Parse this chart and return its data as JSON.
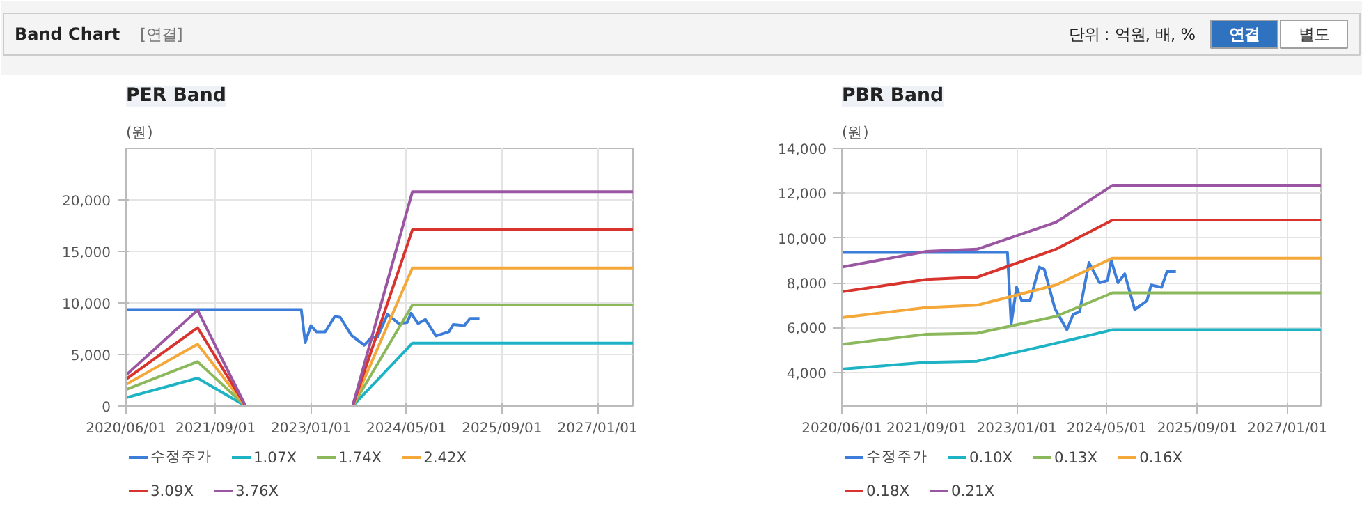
{
  "chart_data": [
    {
      "type": "other",
      "title": "Band Chart",
      "annotations": [
        "[연결]",
        "단위 : 억원, 배, %",
        "연결",
        "별도"
      ]
    },
    {
      "type": "line",
      "title": "PER Band",
      "ylabel": "(원)",
      "xlim": [
        "2020-06-01",
        "2027-07-01"
      ],
      "ylim": [
        0,
        25000
      ],
      "xticks": [
        {
          "value": "2020-06-01",
          "label": "2020/06/01"
        },
        {
          "value": "2021-09-01",
          "label": "2021/09/01"
        },
        {
          "value": "2023-01-01",
          "label": "2023/01/01"
        },
        {
          "value": "2024-05-01",
          "label": "2024/05/01"
        },
        {
          "value": "2025-09-01",
          "label": "2025/09/01"
        },
        {
          "value": "2027-01-01",
          "label": "2027/01/01"
        }
      ],
      "yticks": [
        {
          "value": 0,
          "label": "0"
        },
        {
          "value": 5000,
          "label": "5,000"
        },
        {
          "value": 10000,
          "label": "10,000"
        },
        {
          "value": 15000,
          "label": "15,000"
        },
        {
          "value": 20000,
          "label": "20,000"
        }
      ],
      "grid": true,
      "legend": "bottom",
      "marker": "none",
      "line_style": "solid",
      "series": [
        {
          "name": "수정주가",
          "color": "#3b7dd8",
          "x": [
            "2020-06-01",
            "2022-11-12",
            "2022-12-02",
            "2022-12-31",
            "2023-01-28",
            "2023-03-14",
            "2023-05-02",
            "2023-05-30",
            "2023-07-26",
            "2023-09-29",
            "2023-11-02",
            "2023-12-06",
            "2024-01-26",
            "2024-03-23",
            "2024-05-05",
            "2024-05-25",
            "2024-06-30",
            "2024-08-06",
            "2024-09-29",
            "2024-12-04",
            "2024-12-26",
            "2025-02-21",
            "2025-03-22",
            "2025-05-09"
          ],
          "values": [
            9350,
            9350,
            6150,
            7800,
            7200,
            7200,
            8700,
            8600,
            6850,
            5900,
            6600,
            6700,
            8900,
            8000,
            8100,
            9000,
            8000,
            8400,
            6800,
            7200,
            7900,
            7800,
            8500,
            8500
          ]
        },
        {
          "name": "1.07X",
          "color": "#1db3c4",
          "x": [
            "2020-06-01",
            "2021-06-01",
            "2022-02-01",
            "2022-11-01",
            "2023-08-01",
            "2024-06-01",
            "2027-07-01"
          ],
          "values": [
            800,
            2700,
            0,
            null,
            0,
            6100,
            6100
          ]
        },
        {
          "name": "1.74X",
          "color": "#8cb85c",
          "x": [
            "2020-06-01",
            "2021-06-01",
            "2022-02-01",
            "2022-11-01",
            "2023-08-01",
            "2024-06-01",
            "2027-07-01"
          ],
          "values": [
            1600,
            4300,
            0,
            null,
            0,
            9800,
            9800
          ]
        },
        {
          "name": "2.42X",
          "color": "#f5a83a",
          "x": [
            "2020-06-01",
            "2021-06-01",
            "2022-02-01",
            "2022-11-01",
            "2023-08-01",
            "2024-06-01",
            "2027-07-01"
          ],
          "values": [
            2100,
            6000,
            0,
            null,
            0,
            13400,
            13400
          ]
        },
        {
          "name": "3.09X",
          "color": "#d8332c",
          "x": [
            "2020-06-01",
            "2021-06-01",
            "2022-02-01",
            "2022-11-01",
            "2023-08-01",
            "2024-06-01",
            "2027-07-01"
          ],
          "values": [
            2600,
            7600,
            0,
            null,
            0,
            17100,
            17100
          ]
        },
        {
          "name": "3.76X",
          "color": "#9b56a3",
          "x": [
            "2020-06-01",
            "2021-06-01",
            "2022-02-01",
            "2022-11-01",
            "2023-08-01",
            "2024-06-01",
            "2027-07-01"
          ],
          "values": [
            3000,
            9300,
            0,
            null,
            0,
            20800,
            20800
          ]
        }
      ]
    },
    {
      "type": "line",
      "title": "PBR Band",
      "ylabel": "(원)",
      "xlim": [
        "2020-06-01",
        "2027-07-01"
      ],
      "ylim": [
        2500,
        14000
      ],
      "xticks": [
        {
          "value": "2020-06-01",
          "label": "2020/06/01"
        },
        {
          "value": "2021-09-01",
          "label": "2021/09/01"
        },
        {
          "value": "2023-01-01",
          "label": "2023/01/01"
        },
        {
          "value": "2024-05-01",
          "label": "2024/05/01"
        },
        {
          "value": "2025-09-01",
          "label": "2025/09/01"
        },
        {
          "value": "2027-01-01",
          "label": "2027/01/01"
        }
      ],
      "yticks": [
        {
          "value": 4000,
          "label": "4,000"
        },
        {
          "value": 6000,
          "label": "6,000"
        },
        {
          "value": 8000,
          "label": "8,000"
        },
        {
          "value": 10000,
          "label": "10,000"
        },
        {
          "value": 12000,
          "label": "12,000"
        },
        {
          "value": 14000,
          "label": "14,000"
        }
      ],
      "grid": true,
      "legend": "bottom",
      "marker": "none",
      "line_style": "solid",
      "series": [
        {
          "name": "수정주가",
          "color": "#3b7dd8",
          "x": [
            "2020-06-01",
            "2022-11-12",
            "2022-12-02",
            "2022-12-31",
            "2023-01-28",
            "2023-03-14",
            "2023-05-02",
            "2023-05-30",
            "2023-07-26",
            "2023-09-29",
            "2023-11-02",
            "2023-12-06",
            "2024-01-26",
            "2024-03-23",
            "2024-05-05",
            "2024-05-25",
            "2024-06-30",
            "2024-08-06",
            "2024-09-29",
            "2024-12-04",
            "2024-12-26",
            "2025-02-21",
            "2025-03-22",
            "2025-05-09"
          ],
          "values": [
            9350,
            9350,
            6150,
            7800,
            7200,
            7200,
            8700,
            8600,
            6850,
            5900,
            6600,
            6700,
            8900,
            8000,
            8100,
            9000,
            8000,
            8400,
            6800,
            7200,
            7900,
            7800,
            8500,
            8500
          ]
        },
        {
          "name": "0.10X",
          "color": "#1db3c4",
          "x": [
            "2020-06-01",
            "2021-09-01",
            "2022-06-01",
            "2023-08-01",
            "2024-06-01",
            "2027-07-01"
          ],
          "values": [
            4150,
            4450,
            4500,
            5300,
            5900,
            5900
          ]
        },
        {
          "name": "0.13X",
          "color": "#8cb85c",
          "x": [
            "2020-06-01",
            "2021-09-01",
            "2022-06-01",
            "2023-08-01",
            "2024-06-01",
            "2027-07-01"
          ],
          "values": [
            5250,
            5700,
            5750,
            6500,
            7550,
            7550
          ]
        },
        {
          "name": "0.16X",
          "color": "#f5a83a",
          "x": [
            "2020-06-01",
            "2021-09-01",
            "2022-06-01",
            "2023-08-01",
            "2024-06-01",
            "2027-07-01"
          ],
          "values": [
            6450,
            6900,
            7000,
            7900,
            9100,
            9100
          ]
        },
        {
          "name": "0.18X",
          "color": "#d8332c",
          "x": [
            "2020-06-01",
            "2021-09-01",
            "2022-06-01",
            "2023-08-01",
            "2024-06-01",
            "2027-07-01"
          ],
          "values": [
            7600,
            8150,
            8250,
            9500,
            10800,
            10800
          ]
        },
        {
          "name": "0.21X",
          "color": "#9b56a3",
          "x": [
            "2020-06-01",
            "2021-09-01",
            "2022-06-01",
            "2023-08-01",
            "2024-06-01",
            "2027-07-01"
          ],
          "values": [
            8700,
            9400,
            9500,
            10700,
            12350,
            12350
          ]
        }
      ]
    }
  ]
}
